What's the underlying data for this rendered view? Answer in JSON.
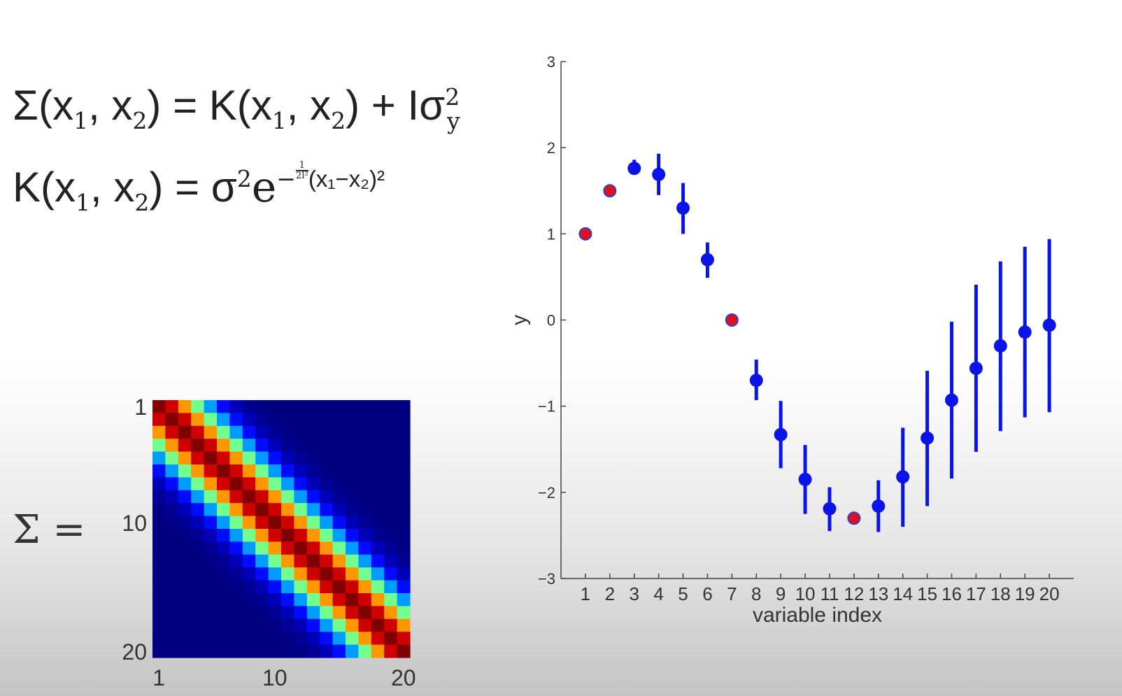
{
  "equations": {
    "sigma_lhs": "Σ(x",
    "sigma_sub1": "1",
    "sigma_mid1": ", x",
    "sigma_sub2": "2",
    "sigma_mid2": ") = K(x",
    "sigma_sub3": "1",
    "sigma_mid3": ", x",
    "sigma_sub4": "2",
    "sigma_end": ") + Iσ",
    "sigma_sup": "2",
    "sigma_sub5": "y",
    "k_lhs": "K(x",
    "k_sub1": "1",
    "k_mid": ", x",
    "k_sub2": "2",
    "k_eq": ") = σ",
    "k_sup": "2",
    "k_e": "e",
    "k_exp_minus": "−",
    "k_frac_num": "1",
    "k_frac_den": "2l²",
    "k_exp_tail": "(x₁−x₂)²",
    "matrix_label": "Σ ="
  },
  "colors": {
    "series_predicted": "#0a14e6",
    "series_observed": "#e01020",
    "observed_edge": "#3040c0",
    "axis": "#444444"
  },
  "chart_data": [
    {
      "type": "heatmap",
      "size": 20,
      "colormap": "jet",
      "length_scale_l": 2.5,
      "row_tick_labels": [
        "1",
        "10",
        "20"
      ],
      "col_tick_labels": [
        "1",
        "10",
        "20"
      ],
      "row_tick_values": [
        1,
        10,
        20
      ],
      "col_tick_values": [
        1,
        10,
        20
      ]
    },
    {
      "type": "scatter",
      "xlabel": "variable index",
      "ylabel": "y",
      "xlim": [
        0,
        21
      ],
      "ylim": [
        -3,
        3
      ],
      "yticks": [
        -3,
        -2,
        -1,
        0,
        1,
        2,
        3
      ],
      "ytick_labels": [
        "−3",
        "−2",
        "−1",
        "0",
        "1",
        "2",
        "3"
      ],
      "xticks": [
        1,
        2,
        3,
        4,
        5,
        6,
        7,
        8,
        9,
        10,
        11,
        12,
        13,
        14,
        15,
        16,
        17,
        18,
        19,
        20
      ],
      "xtick_labels": [
        "1",
        "2",
        "3",
        "4",
        "5",
        "6",
        "7",
        "8",
        "9",
        "10",
        "11",
        "12",
        "13",
        "14",
        "15",
        "16",
        "17",
        "18",
        "19",
        "20"
      ],
      "grid": false,
      "series": [
        {
          "role": "predicted",
          "points": [
            {
              "x": 3,
              "y": 1.76,
              "lo": 1.7,
              "hi": 1.86
            },
            {
              "x": 4,
              "y": 1.69,
              "lo": 1.45,
              "hi": 1.93
            },
            {
              "x": 5,
              "y": 1.3,
              "lo": 1.0,
              "hi": 1.59
            },
            {
              "x": 6,
              "y": 0.7,
              "lo": 0.49,
              "hi": 0.9
            },
            {
              "x": 8,
              "y": -0.7,
              "lo": -0.93,
              "hi": -0.46
            },
            {
              "x": 9,
              "y": -1.33,
              "lo": -1.72,
              "hi": -0.94
            },
            {
              "x": 10,
              "y": -1.85,
              "lo": -2.25,
              "hi": -1.45
            },
            {
              "x": 11,
              "y": -2.19,
              "lo": -2.45,
              "hi": -1.94
            },
            {
              "x": 13,
              "y": -2.16,
              "lo": -2.46,
              "hi": -1.86
            },
            {
              "x": 14,
              "y": -1.82,
              "lo": -2.4,
              "hi": -1.25
            },
            {
              "x": 15,
              "y": -1.37,
              "lo": -2.16,
              "hi": -0.59
            },
            {
              "x": 16,
              "y": -0.93,
              "lo": -1.84,
              "hi": -0.02
            },
            {
              "x": 17,
              "y": -0.56,
              "lo": -1.53,
              "hi": 0.41
            },
            {
              "x": 18,
              "y": -0.3,
              "lo": -1.29,
              "hi": 0.68
            },
            {
              "x": 19,
              "y": -0.14,
              "lo": -1.13,
              "hi": 0.85
            },
            {
              "x": 20,
              "y": -0.06,
              "lo": -1.07,
              "hi": 0.94
            }
          ]
        },
        {
          "role": "observed",
          "points": [
            {
              "x": 1,
              "y": 1.0
            },
            {
              "x": 2,
              "y": 1.5
            },
            {
              "x": 7,
              "y": 0.0
            },
            {
              "x": 12,
              "y": -2.3
            }
          ]
        }
      ]
    }
  ]
}
